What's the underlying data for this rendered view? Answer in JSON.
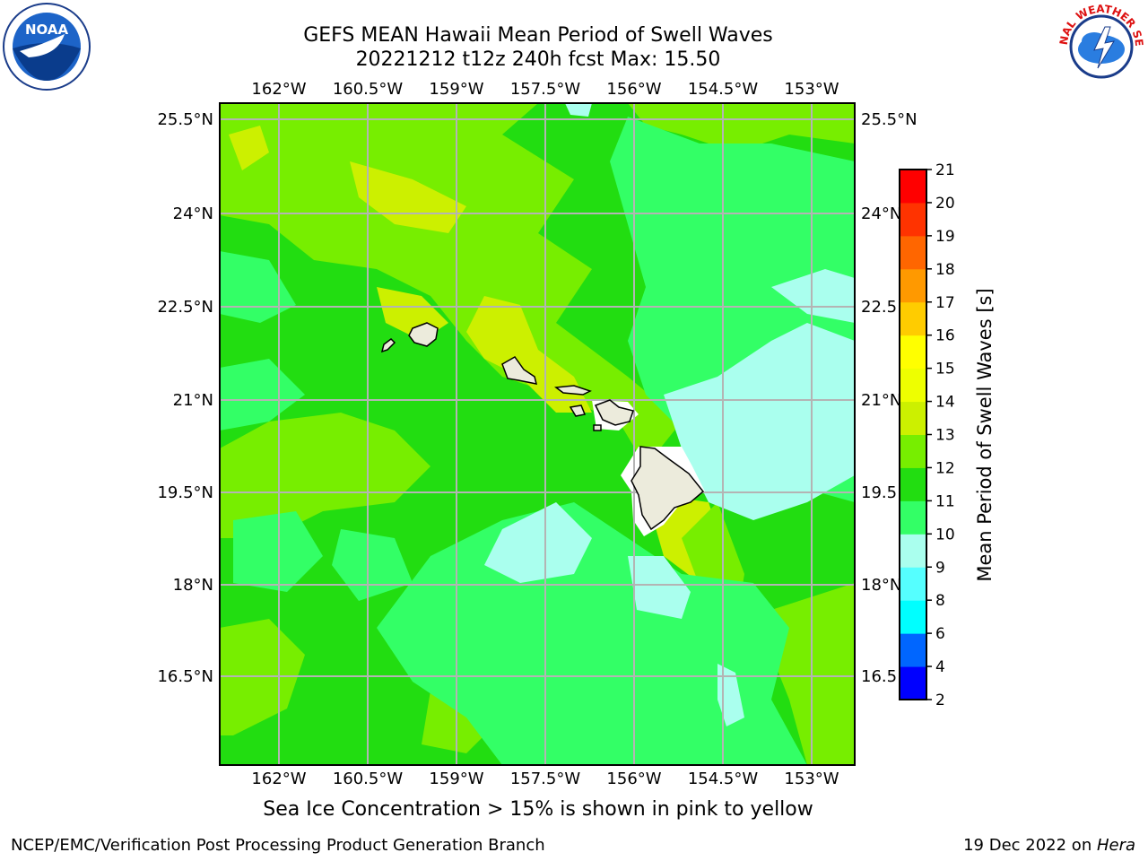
{
  "header": {
    "title_line1": "GEFS MEAN Hawaii Mean Period of Swell Waves",
    "title_line2": "20221212 t12z 240h fcst   Max: 15.50"
  },
  "logos": {
    "left": {
      "icon": "noaa-logo-icon",
      "text": "NOAA"
    },
    "right": {
      "icon": "nws-logo-icon",
      "text": "NATIONAL WEATHER SERVICE"
    }
  },
  "map": {
    "lon_ticks": [
      "162°W",
      "160.5°W",
      "159°W",
      "157.5°W",
      "156°W",
      "154.5°W",
      "153°W"
    ],
    "lat_ticks": [
      "25.5°N",
      "24°N",
      "22.5°N",
      "21°N",
      "19.5°N",
      "18°N",
      "16.5°N"
    ],
    "lat_ticks_right": [
      "25.5°N",
      "24°N",
      "22.5",
      "21°N",
      "19.5",
      "18°N",
      "16.5"
    ]
  },
  "colorbar": {
    "label": "Mean Period of Swell Waves [s]",
    "ticks": [
      "2",
      "4",
      "6",
      "8",
      "9",
      "10",
      "11",
      "12",
      "13",
      "14",
      "15",
      "16",
      "17",
      "18",
      "19",
      "20",
      "21"
    ],
    "colors": [
      "#0000ff",
      "#0066ff",
      "#00ffff",
      "#55ffff",
      "#aaffee",
      "#33ff66",
      "#22dd11",
      "#77ee00",
      "#ccf000",
      "#eeff00",
      "#ffff00",
      "#ffcc00",
      "#ff9900",
      "#ff6600",
      "#ff3300",
      "#ff0000"
    ]
  },
  "note": "Sea Ice Concentration > 15% is shown in pink to yellow",
  "footer": {
    "left": "NCEP/EMC/Verification Post Processing Product Generation Branch",
    "right_prefix": "19 Dec 2022 on ",
    "right_machine": "Hera"
  }
}
